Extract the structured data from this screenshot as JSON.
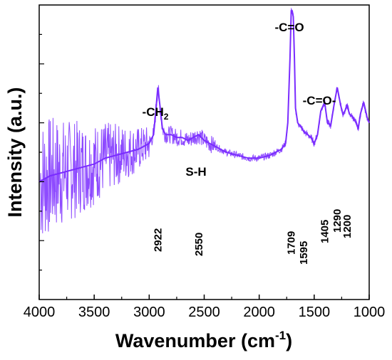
{
  "chart_data": {
    "type": "line",
    "title": "",
    "xlabel": "Wavenumber (cm",
    "xlabel_sup": "-1",
    "xlabel_close": ")",
    "ylabel": "Intensity (a.u.)",
    "xlim": [
      4000,
      1000
    ],
    "ylim": [
      0,
      1
    ],
    "x_ticks": [
      "4000",
      "3500",
      "3000",
      "2500",
      "2000",
      "1500",
      "1000"
    ],
    "x_tick_values": [
      4000,
      3500,
      3000,
      2500,
      2000,
      1500,
      1000
    ],
    "y_ticks_labeled": false,
    "grid": false,
    "line_color": "#7a2cff",
    "series": [
      {
        "x": [
          4000,
          3900,
          3800,
          3700,
          3600,
          3500,
          3400,
          3300,
          3200,
          3100,
          3000,
          2960,
          2940,
          2922,
          2900,
          2880,
          2850,
          2800,
          2750,
          2700,
          2650,
          2600,
          2550,
          2500,
          2450,
          2400,
          2300,
          2200,
          2100,
          2000,
          1900,
          1850,
          1800,
          1780,
          1760,
          1740,
          1720,
          1709,
          1700,
          1690,
          1680,
          1670,
          1650,
          1630,
          1610,
          1595,
          1560,
          1530,
          1500,
          1470,
          1440,
          1405,
          1380,
          1350,
          1320,
          1290,
          1260,
          1240,
          1220,
          1200,
          1180,
          1150,
          1120,
          1100,
          1080,
          1050,
          1020,
          1000
        ],
        "y": [
          0.4,
          0.42,
          0.43,
          0.44,
          0.45,
          0.46,
          0.48,
          0.49,
          0.5,
          0.51,
          0.53,
          0.56,
          0.64,
          0.72,
          0.65,
          0.58,
          0.56,
          0.56,
          0.55,
          0.55,
          0.54,
          0.55,
          0.56,
          0.54,
          0.53,
          0.52,
          0.5,
          0.49,
          0.48,
          0.48,
          0.49,
          0.5,
          0.51,
          0.52,
          0.53,
          0.6,
          0.82,
          0.98,
          0.98,
          0.96,
          0.82,
          0.65,
          0.6,
          0.59,
          0.58,
          0.57,
          0.56,
          0.55,
          0.53,
          0.56,
          0.64,
          0.67,
          0.6,
          0.59,
          0.66,
          0.72,
          0.66,
          0.63,
          0.64,
          0.66,
          0.63,
          0.62,
          0.6,
          0.58,
          0.63,
          0.67,
          0.62,
          0.6
        ]
      }
    ],
    "annotations": [
      {
        "text": "-CH",
        "sub": "2",
        "x": 2922
      },
      {
        "text": "S-H",
        "x": 2550
      },
      {
        "text": "-C=O",
        "x": 1709
      },
      {
        "text": "-C=O-",
        "x": 1595
      }
    ],
    "peak_labels": [
      {
        "text": "2922",
        "x": 2922
      },
      {
        "text": "2550",
        "x": 2550
      },
      {
        "text": "1709",
        "x": 1709
      },
      {
        "text": "1595",
        "x": 1595
      },
      {
        "text": "1405",
        "x": 1405
      },
      {
        "text": "1290",
        "x": 1290
      },
      {
        "text": "1200",
        "x": 1200
      }
    ]
  }
}
